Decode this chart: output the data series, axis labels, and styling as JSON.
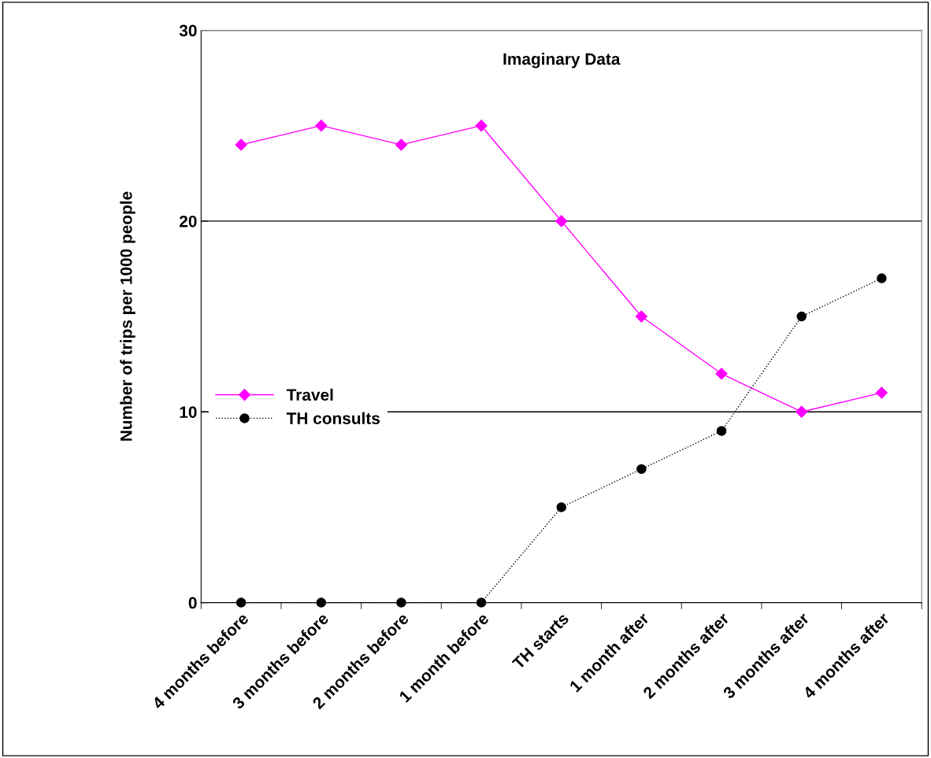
{
  "chart_data": {
    "type": "line",
    "title": "Imaginary Data",
    "ylabel": "Number of trips per 1000 people",
    "categories": [
      "4 months before",
      "3 months before",
      "2 months before",
      "1 month before",
      "TH starts",
      "1 month after",
      "2 months after",
      "3 months after",
      "4 months after"
    ],
    "series": [
      {
        "name": "Travel",
        "color": "#ff00ff",
        "marker": "diamond",
        "line_style": "solid",
        "values": [
          24,
          25,
          24,
          25,
          20,
          15,
          12,
          10,
          11
        ]
      },
      {
        "name": "TH consults",
        "color": "#000000",
        "marker": "circle",
        "line_style": "dotted",
        "values": [
          0,
          0,
          0,
          0,
          5,
          7,
          9,
          15,
          17
        ]
      }
    ],
    "ylim": [
      0,
      30
    ],
    "yticks": [
      0,
      10,
      20,
      30
    ],
    "grid": "y",
    "legend": "center left"
  }
}
